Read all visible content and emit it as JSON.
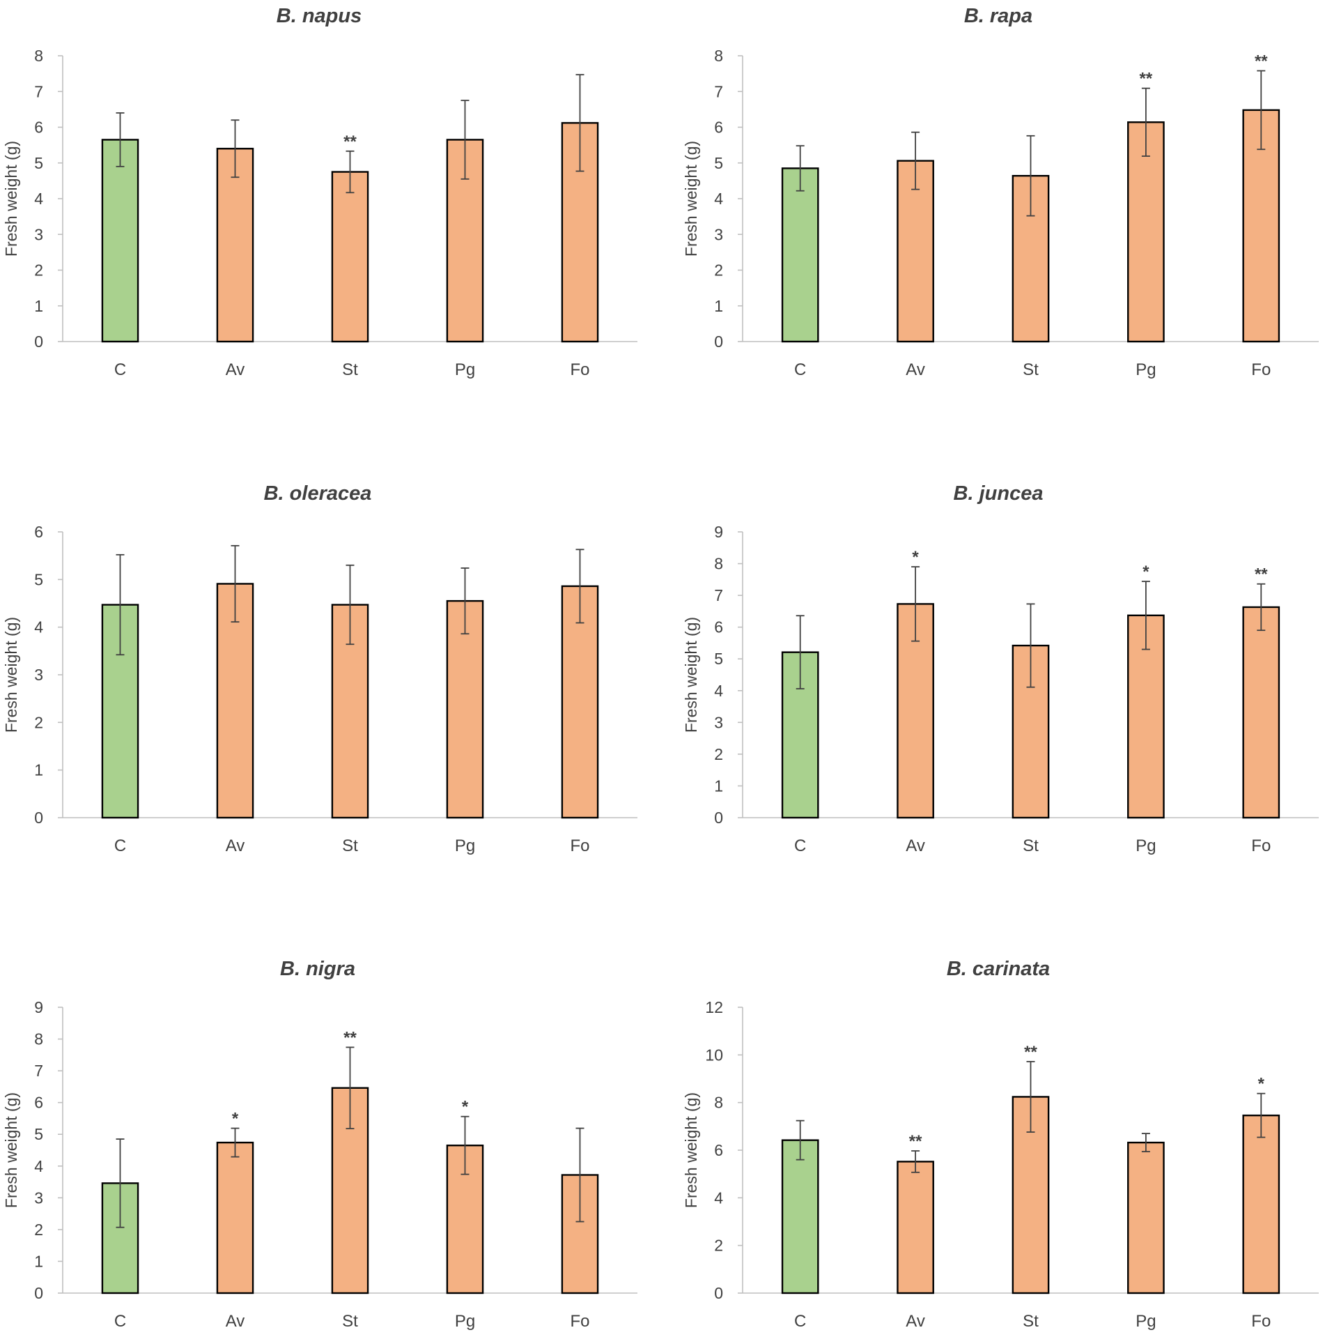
{
  "colors": {
    "control": "#a9d18e",
    "treatment": "#f4b183",
    "bar_edge": "#000000",
    "axis": "#bfbfbf",
    "error_bar": "#404040",
    "text": "#404040"
  },
  "chart_data": [
    {
      "type": "bar",
      "title": "B. napus",
      "xlabel": "",
      "ylabel": "Fresh weight (g)",
      "ylim": [
        0,
        8
      ],
      "yticks": [
        0,
        1,
        2,
        3,
        4,
        5,
        6,
        7,
        8
      ],
      "ytick_labels": [
        "0",
        "1",
        "2",
        "3",
        "4",
        "5",
        "6",
        "7",
        "8"
      ],
      "grid": false,
      "categories": [
        "C",
        "Av",
        "St",
        "Pg",
        "Fo"
      ],
      "values": [
        5.65,
        5.4,
        4.75,
        5.65,
        6.12
      ],
      "errors": [
        0.75,
        0.8,
        0.58,
        1.1,
        1.35
      ],
      "significance": [
        "",
        "",
        "**",
        "",
        ""
      ],
      "bar_colors": [
        "control",
        "treatment",
        "treatment",
        "treatment",
        "treatment"
      ]
    },
    {
      "type": "bar",
      "title": "B. rapa",
      "xlabel": "",
      "ylabel": "Fresh weight (g)",
      "ylim": [
        0,
        8
      ],
      "yticks": [
        0,
        1,
        2,
        3,
        4,
        5,
        6,
        7,
        8
      ],
      "ytick_labels": [
        "0",
        "1",
        "2",
        "3",
        "4",
        "5",
        "6",
        "7",
        "8"
      ],
      "grid": false,
      "categories": [
        "C",
        "Av",
        "St",
        "Pg",
        "Fo"
      ],
      "values": [
        4.85,
        5.06,
        4.64,
        6.14,
        6.48
      ],
      "errors": [
        0.63,
        0.8,
        1.12,
        0.95,
        1.1
      ],
      "significance": [
        "",
        "",
        "",
        "**",
        "**"
      ],
      "bar_colors": [
        "control",
        "treatment",
        "treatment",
        "treatment",
        "treatment"
      ]
    },
    {
      "type": "bar",
      "title": "B. oleracea",
      "xlabel": "",
      "ylabel": "Fresh weight (g)",
      "ylim": [
        0,
        6
      ],
      "yticks": [
        0,
        1,
        2,
        3,
        4,
        5,
        6
      ],
      "ytick_labels": [
        "0",
        "1",
        "2",
        "3",
        "4",
        "5",
        "6"
      ],
      "grid": false,
      "categories": [
        "C",
        "Av",
        "St",
        "Pg",
        "Fo"
      ],
      "values": [
        4.47,
        4.91,
        4.47,
        4.55,
        4.86
      ],
      "errors": [
        1.05,
        0.8,
        0.83,
        0.69,
        0.77
      ],
      "significance": [
        "",
        "",
        "",
        "",
        ""
      ],
      "bar_colors": [
        "control",
        "treatment",
        "treatment",
        "treatment",
        "treatment"
      ]
    },
    {
      "type": "bar",
      "title": "B. juncea",
      "xlabel": "",
      "ylabel": "Fresh weight (g)",
      "ylim": [
        0,
        9
      ],
      "yticks": [
        0,
        1,
        2,
        3,
        4,
        5,
        6,
        7,
        8,
        9
      ],
      "ytick_labels": [
        "0",
        "1",
        "2",
        "3",
        "4",
        "5",
        "6",
        "7",
        "8",
        "9"
      ],
      "grid": false,
      "categories": [
        "C",
        "Av",
        "St",
        "Pg",
        "Fo"
      ],
      "values": [
        5.21,
        6.73,
        5.42,
        6.37,
        6.63
      ],
      "errors": [
        1.15,
        1.17,
        1.31,
        1.07,
        0.73
      ],
      "significance": [
        "",
        "*",
        "",
        "*",
        "**"
      ],
      "bar_colors": [
        "control",
        "treatment",
        "treatment",
        "treatment",
        "treatment"
      ]
    },
    {
      "type": "bar",
      "title": "B. nigra",
      "xlabel": "",
      "ylabel": "Fresh weight (g)",
      "ylim": [
        0,
        9
      ],
      "yticks": [
        0,
        1,
        2,
        3,
        4,
        5,
        6,
        7,
        8,
        9
      ],
      "ytick_labels": [
        "0",
        "1",
        "2",
        "3",
        "4",
        "5",
        "6",
        "7",
        "8",
        "9"
      ],
      "grid": false,
      "categories": [
        "C",
        "Av",
        "St",
        "Pg",
        "Fo"
      ],
      "values": [
        3.46,
        4.74,
        6.46,
        4.65,
        3.72
      ],
      "errors": [
        1.39,
        0.45,
        1.28,
        0.91,
        1.47
      ],
      "significance": [
        "",
        "*",
        "**",
        "*",
        ""
      ],
      "bar_colors": [
        "control",
        "treatment",
        "treatment",
        "treatment",
        "treatment"
      ]
    },
    {
      "type": "bar",
      "title": "B. carinata",
      "xlabel": "",
      "ylabel": "Fresh weight (g)",
      "ylim": [
        0,
        12
      ],
      "yticks": [
        0,
        2,
        4,
        6,
        8,
        10,
        12
      ],
      "ytick_labels": [
        "0",
        "2",
        "4",
        "6",
        "8",
        "10",
        "12"
      ],
      "grid": false,
      "categories": [
        "C",
        "Av",
        "St",
        "Pg",
        "Fo"
      ],
      "values": [
        6.42,
        5.52,
        8.24,
        6.32,
        7.46
      ],
      "errors": [
        0.82,
        0.45,
        1.48,
        0.38,
        0.92
      ],
      "significance": [
        "",
        "**",
        "**",
        "",
        "*"
      ],
      "bar_colors": [
        "control",
        "treatment",
        "treatment",
        "treatment",
        "treatment"
      ]
    }
  ]
}
